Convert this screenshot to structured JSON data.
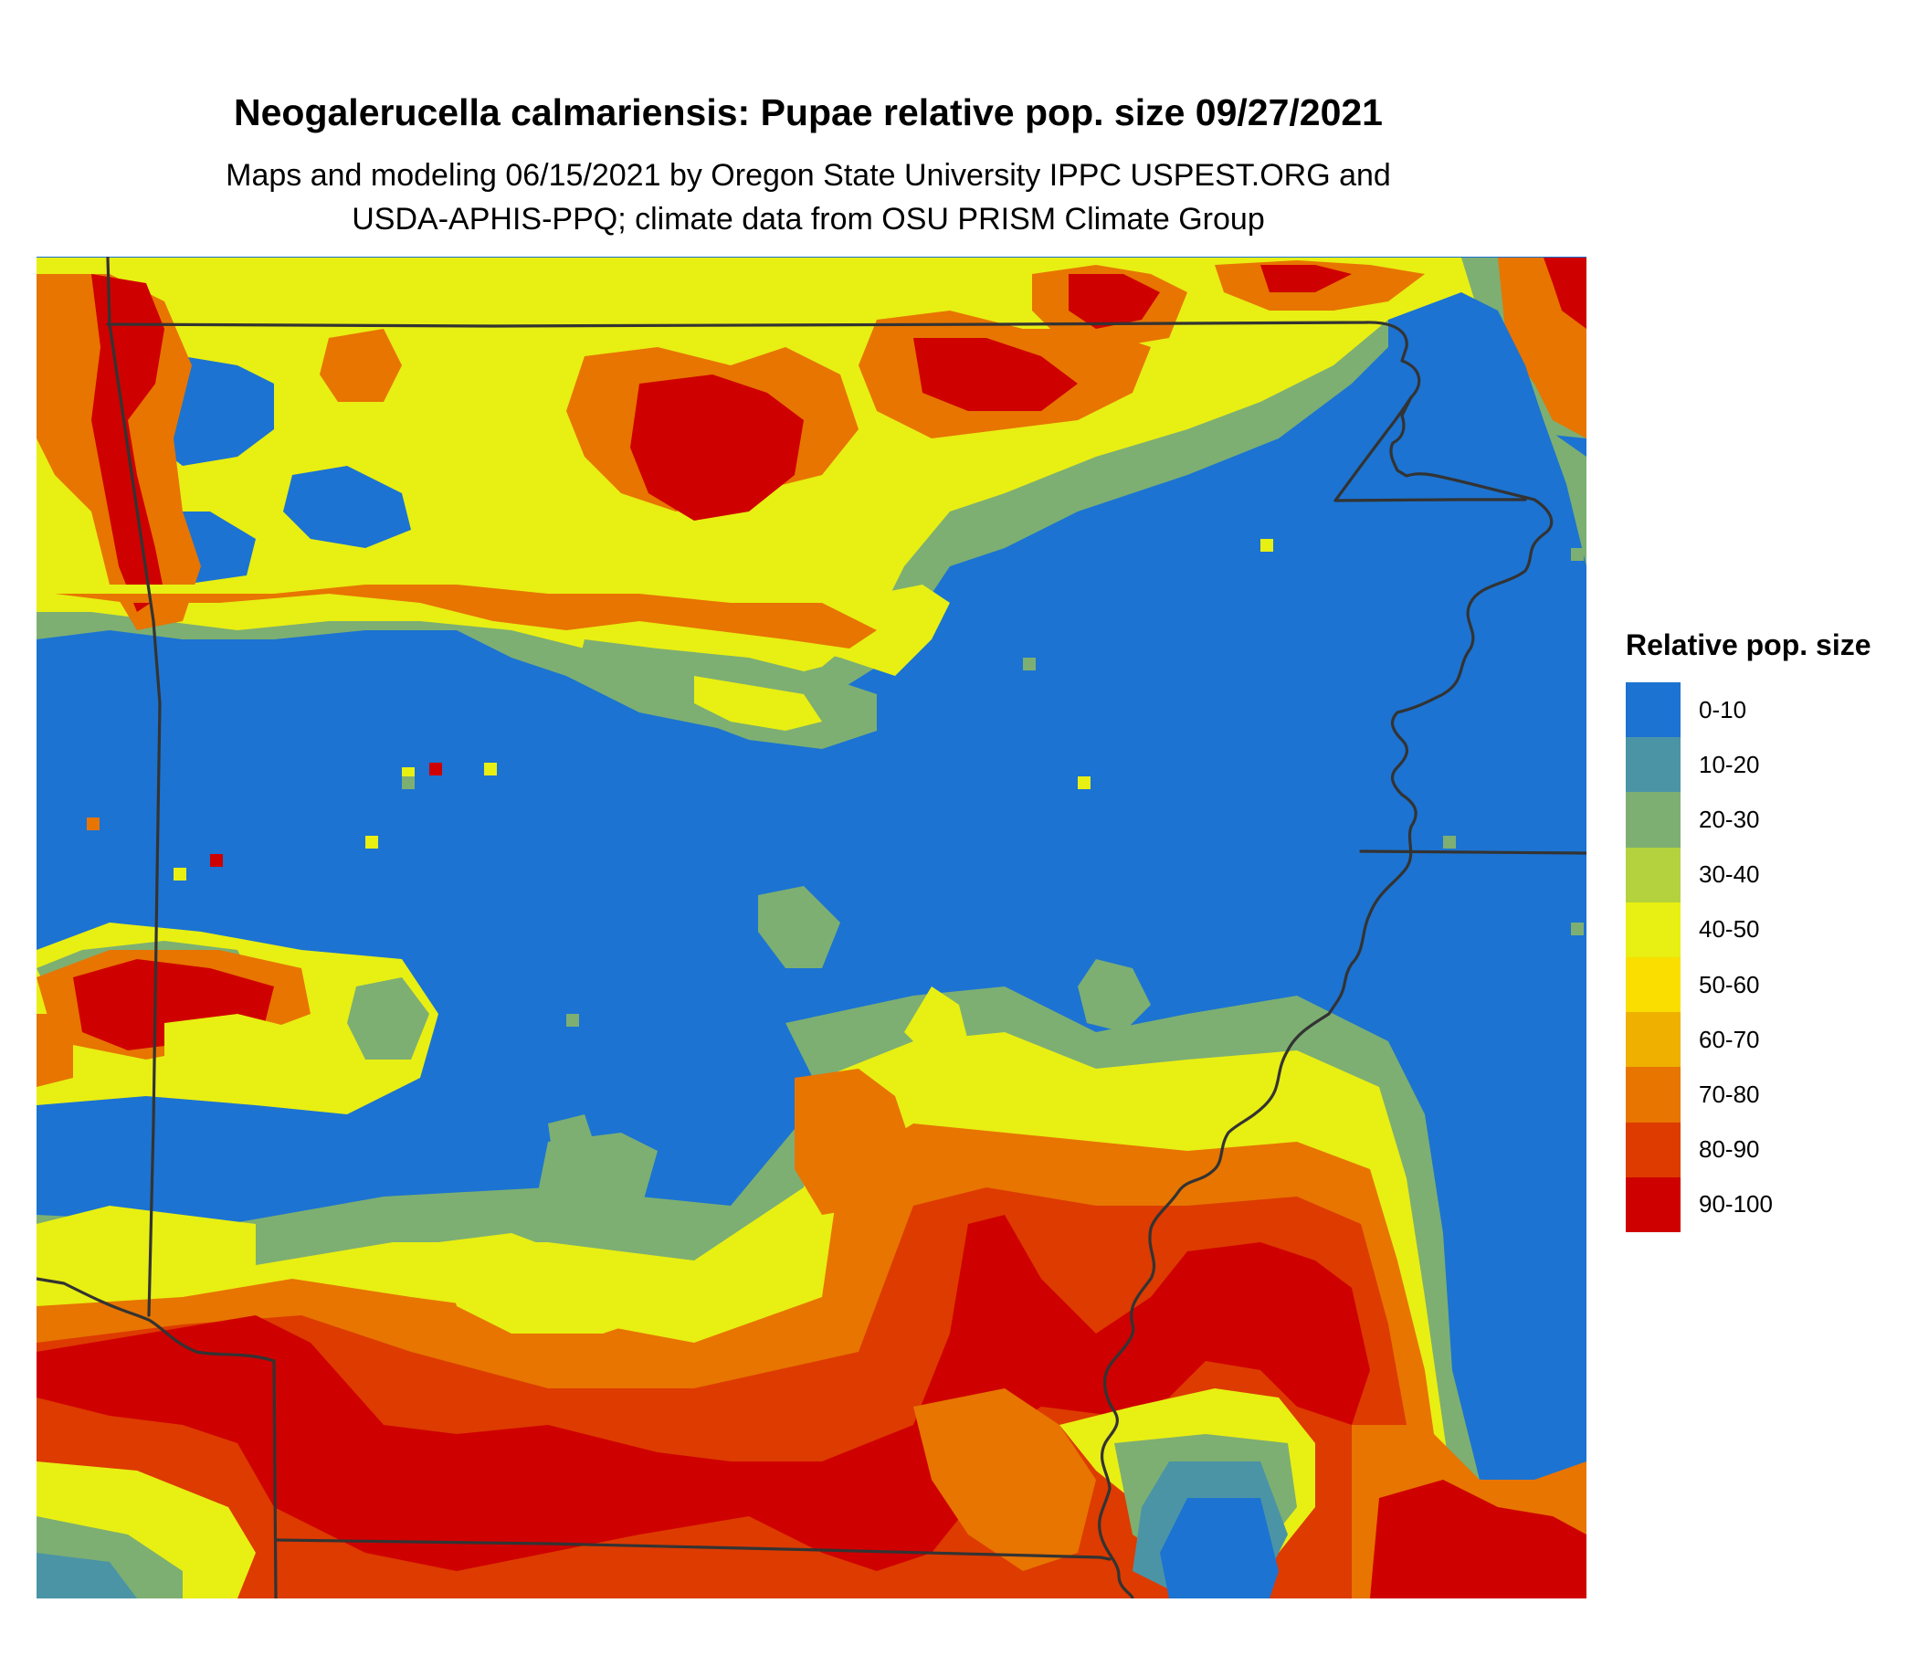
{
  "header": {
    "title": "Neogalerucella calmariensis: Pupae relative pop. size 09/27/2021",
    "subtitle_line1": "Maps and modeling 06/15/2021 by Oregon State University IPPC USPEST.ORG and",
    "subtitle_line2": "USDA-APHIS-PPQ; climate data from OSU PRISM Climate Group"
  },
  "legend": {
    "title": "Relative pop. size",
    "items": [
      {
        "label": "0-10",
        "color": "#1c73d1"
      },
      {
        "label": "10-20",
        "color": "#4b94a6"
      },
      {
        "label": "20-30",
        "color": "#7daf72"
      },
      {
        "label": "30-40",
        "color": "#b3d23d"
      },
      {
        "label": "40-50",
        "color": "#e8ef13"
      },
      {
        "label": "50-60",
        "color": "#f9de00"
      },
      {
        "label": "60-70",
        "color": "#efb000"
      },
      {
        "label": "70-80",
        "color": "#e77500"
      },
      {
        "label": "80-90",
        "color": "#dd3b00"
      },
      {
        "label": "90-100",
        "color": "#cf0000"
      }
    ]
  },
  "map": {
    "background_class": "0-10",
    "boundary_color": "#333333"
  }
}
